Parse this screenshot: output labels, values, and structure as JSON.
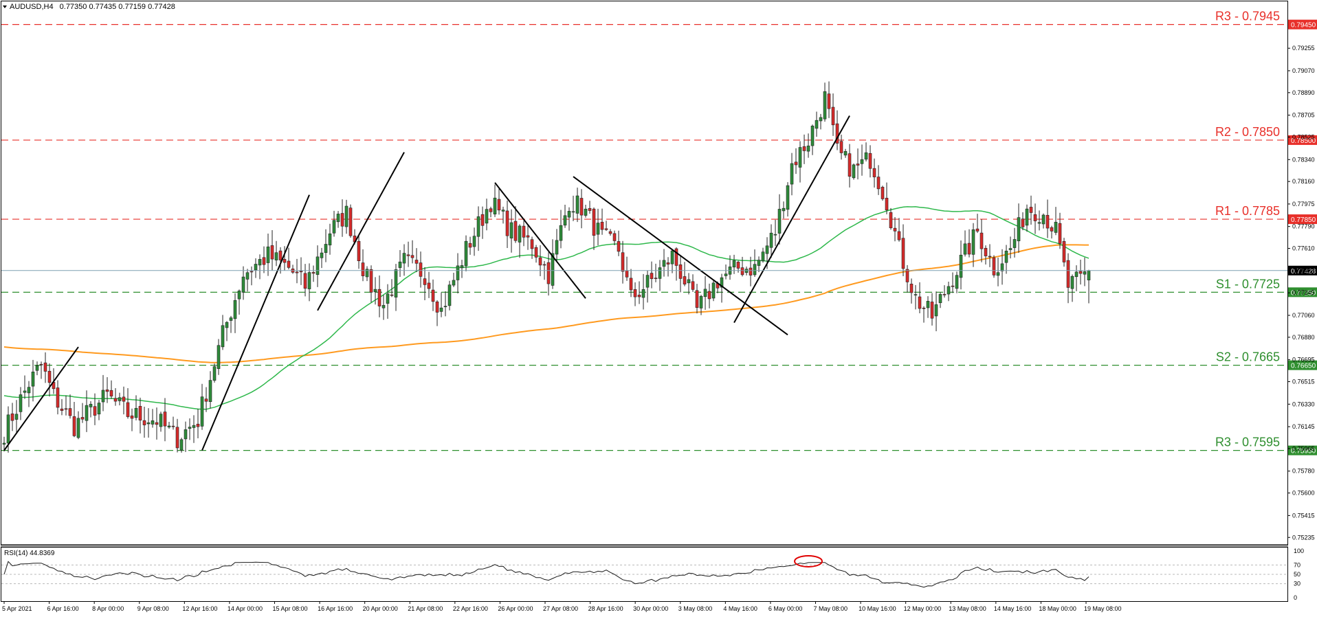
{
  "header": {
    "symbol": "AUDUSD,H4",
    "ohlc": "0.77350 0.77435 0.77159 0.77428"
  },
  "rsi_header": "RSI(14) 44.8369",
  "colors": {
    "bull": "#2e8b3a",
    "bear": "#d62b2b",
    "resistance": "#e8302a",
    "support": "#2f8f2f",
    "ma_fast": "#2eb84b",
    "ma_slow": "#ff9a1f",
    "price_line": "#7f9fb0",
    "trendline": "#000000"
  },
  "chart_data": {
    "type": "candlestick",
    "ylim": [
      0.7518,
      0.7964
    ],
    "y_ticks": [
      "0.79255",
      "0.79070",
      "0.78890",
      "0.78705",
      "0.78525",
      "0.78340",
      "0.78160",
      "0.77975",
      "0.77790",
      "0.77610",
      "0.77425",
      "0.77245",
      "0.77060",
      "0.76880",
      "0.76695",
      "0.76515",
      "0.76330",
      "0.76145",
      "0.75965",
      "0.75780",
      "0.75600",
      "0.75415",
      "0.75235"
    ],
    "x_ticks": [
      "5 Apr 2021",
      "6 Apr 16:00",
      "8 Apr 00:00",
      "9 Apr 08:00",
      "12 Apr 16:00",
      "14 Apr 00:00",
      "15 Apr 08:00",
      "16 Apr 16:00",
      "20 Apr 00:00",
      "21 Apr 08:00",
      "22 Apr 16:00",
      "26 Apr 00:00",
      "27 Apr 08:00",
      "28 Apr 16:00",
      "30 Apr 00:00",
      "3 May 08:00",
      "4 May 16:00",
      "6 May 00:00",
      "7 May 08:00",
      "10 May 16:00",
      "12 May 00:00",
      "13 May 08:00",
      "14 May 16:00",
      "18 May 00:00",
      "19 May 08:00"
    ],
    "levels": [
      {
        "label": "R3 - 0.7945",
        "price": 0.7945,
        "tag": "0.79450",
        "kind": "resistance"
      },
      {
        "label": "R2 - 0.7850",
        "price": 0.785,
        "tag": "0.78500",
        "kind": "resistance"
      },
      {
        "label": "R1 - 0.7785",
        "price": 0.7785,
        "tag": "0.77850",
        "kind": "resistance"
      },
      {
        "label": "S1 - 0.7725",
        "price": 0.7725,
        "tag": "0.77250",
        "kind": "support"
      },
      {
        "label": "S2 - 0.7665",
        "price": 0.7665,
        "tag": "0.76650",
        "kind": "support"
      },
      {
        "label": "R3 - 0.7595",
        "price": 0.7595,
        "tag": "0.75950",
        "kind": "support"
      }
    ],
    "current_price": {
      "price": 0.77428,
      "tag": "0.77428"
    },
    "anchors": [
      [
        0,
        0.761
      ],
      [
        6,
        0.765
      ],
      [
        9,
        0.7665
      ],
      [
        12,
        0.764
      ],
      [
        17,
        0.7615
      ],
      [
        25,
        0.764
      ],
      [
        30,
        0.7625
      ],
      [
        37,
        0.762
      ],
      [
        42,
        0.7605
      ],
      [
        47,
        0.762
      ],
      [
        53,
        0.769
      ],
      [
        58,
        0.774
      ],
      [
        64,
        0.7755
      ],
      [
        69,
        0.7745
      ],
      [
        73,
        0.773
      ],
      [
        79,
        0.7775
      ],
      [
        83,
        0.779
      ],
      [
        88,
        0.7735
      ],
      [
        92,
        0.7715
      ],
      [
        97,
        0.775
      ],
      [
        102,
        0.774
      ],
      [
        106,
        0.771
      ],
      [
        112,
        0.776
      ],
      [
        118,
        0.78
      ],
      [
        123,
        0.7775
      ],
      [
        128,
        0.7765
      ],
      [
        132,
        0.774
      ],
      [
        137,
        0.78
      ],
      [
        140,
        0.7795
      ],
      [
        145,
        0.777
      ],
      [
        149,
        0.776
      ],
      [
        152,
        0.772
      ],
      [
        157,
        0.7735
      ],
      [
        162,
        0.7755
      ],
      [
        165,
        0.7735
      ],
      [
        168,
        0.771
      ],
      [
        173,
        0.7735
      ],
      [
        178,
        0.7745
      ],
      [
        182,
        0.7745
      ],
      [
        187,
        0.7775
      ],
      [
        191,
        0.783
      ],
      [
        195,
        0.785
      ],
      [
        199,
        0.7885
      ],
      [
        202,
        0.784
      ],
      [
        206,
        0.7825
      ],
      [
        210,
        0.7835
      ],
      [
        214,
        0.78
      ],
      [
        217,
        0.776
      ],
      [
        221,
        0.772
      ],
      [
        225,
        0.7705
      ],
      [
        228,
        0.7725
      ],
      [
        232,
        0.775
      ],
      [
        236,
        0.7775
      ],
      [
        240,
        0.7745
      ],
      [
        244,
        0.776
      ],
      [
        248,
        0.7795
      ],
      [
        252,
        0.779
      ],
      [
        255,
        0.7775
      ],
      [
        258,
        0.773
      ],
      [
        261,
        0.7735
      ],
      [
        263,
        0.7743
      ]
    ],
    "trendlines": [
      [
        [
          0,
          0.7595
        ],
        [
          18,
          0.768
        ]
      ],
      [
        [
          48,
          0.7595
        ],
        [
          74,
          0.7805
        ]
      ],
      [
        [
          76,
          0.771
        ],
        [
          97,
          0.784
        ]
      ],
      [
        [
          119,
          0.7815
        ],
        [
          141,
          0.772
        ]
      ],
      [
        [
          138,
          0.782
        ],
        [
          190,
          0.769
        ]
      ],
      [
        [
          177,
          0.77
        ],
        [
          205,
          0.787
        ]
      ]
    ],
    "rsi": {
      "ylim": [
        0,
        100
      ],
      "ticks": [
        "100",
        "70",
        "50",
        "30",
        "0"
      ],
      "overbought_marker_at": 195
    }
  }
}
